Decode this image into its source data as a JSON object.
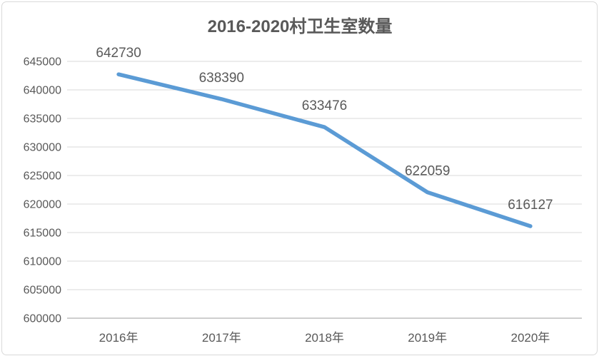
{
  "chart_data": {
    "type": "line",
    "title": "2016-2020村卫生室数量",
    "categories": [
      "2016年",
      "2017年",
      "2018年",
      "2019年",
      "2020年"
    ],
    "values": [
      642730,
      638390,
      633476,
      622059,
      616127
    ],
    "data_labels": [
      "642730",
      "638390",
      "633476",
      "622059",
      "616127"
    ],
    "xlabel": "",
    "ylabel": "",
    "ylim": [
      600000,
      645000
    ],
    "ytick_interval": 5000,
    "ytick_labels": [
      "645000",
      "640000",
      "635000",
      "630000",
      "625000",
      "620000",
      "615000",
      "610000",
      "605000",
      "600000"
    ],
    "grid": true,
    "legend": "none",
    "colors": {
      "line": "#5b9bd5",
      "gridline": "#d9d9d9",
      "axis_line": "#bfbfbf",
      "text": "#595959",
      "frame_border": "#d9d9d9"
    }
  }
}
